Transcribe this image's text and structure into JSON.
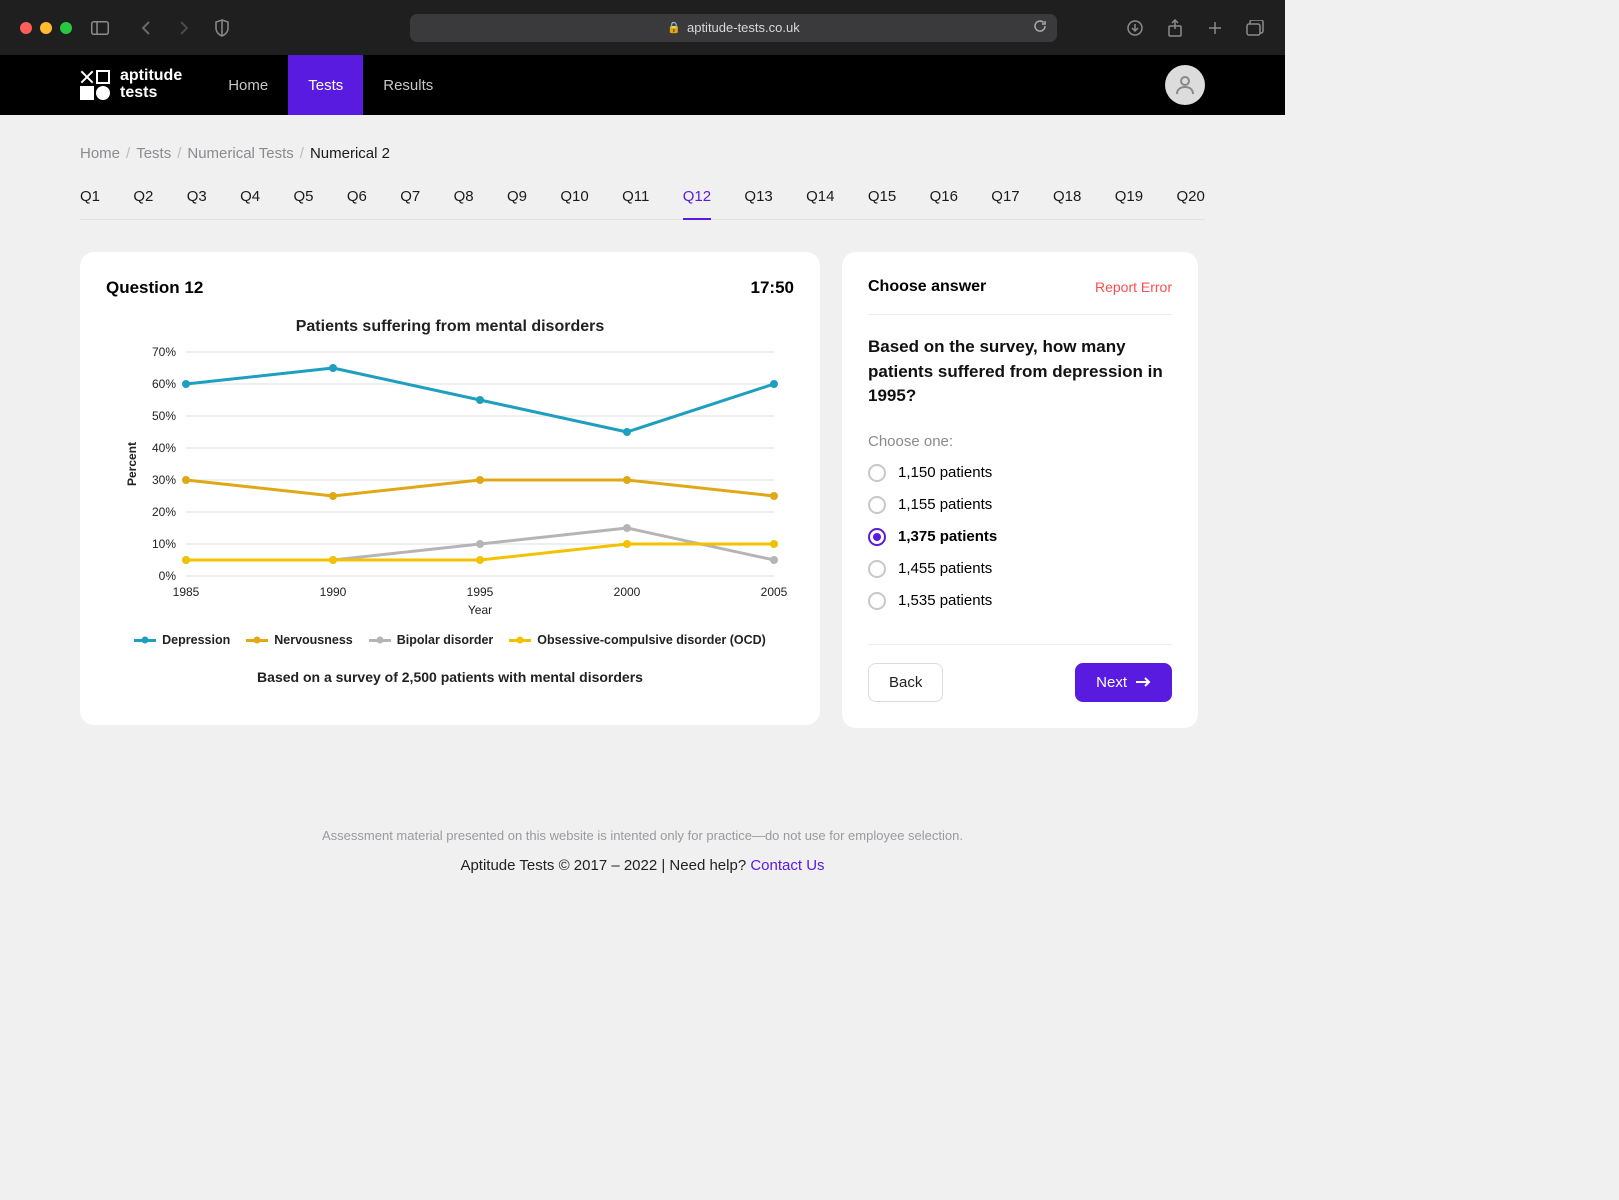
{
  "browser": {
    "url": "aptitude-tests.co.uk",
    "traffic_light_colors": [
      "#ff5f57",
      "#febc2e",
      "#28c840"
    ]
  },
  "header": {
    "brand_line1": "aptitude",
    "brand_line2": "tests",
    "nav": [
      {
        "label": "Home",
        "active": false
      },
      {
        "label": "Tests",
        "active": true
      },
      {
        "label": "Results",
        "active": false
      }
    ]
  },
  "breadcrumb": {
    "items": [
      "Home",
      "Tests",
      "Numerical Tests"
    ],
    "current": "Numerical 2"
  },
  "question_tabs": {
    "items": [
      "Q1",
      "Q2",
      "Q3",
      "Q4",
      "Q5",
      "Q6",
      "Q7",
      "Q8",
      "Q9",
      "Q10",
      "Q11",
      "Q12",
      "Q13",
      "Q14",
      "Q15",
      "Q16",
      "Q17",
      "Q18",
      "Q19",
      "Q20"
    ],
    "active_index": 11
  },
  "question": {
    "heading": "Question 12",
    "timer": "17:50",
    "chart": {
      "type": "line",
      "title": "Patients suffering from mental disorders",
      "subtitle": "Based on a survey of 2,500 patients with mental disorders",
      "x_label": "Year",
      "y_label": "Percent",
      "x_categories": [
        "1985",
        "1990",
        "1995",
        "2000",
        "2005"
      ],
      "y_ticks": [
        "0%",
        "10%",
        "20%",
        "30%",
        "40%",
        "50%",
        "60%",
        "70%"
      ],
      "ylim": [
        0,
        70
      ],
      "ytick_step": 10,
      "grid_color": "#dfdfe2",
      "background_color": "#ffffff",
      "title_fontsize": 16,
      "label_fontsize": 12,
      "line_width": 3,
      "marker_size": 4,
      "series": [
        {
          "name": "Depression",
          "color": "#1f9fbf",
          "values": [
            60,
            65,
            55,
            45,
            60
          ]
        },
        {
          "name": "Nervousness",
          "color": "#e0a817",
          "values": [
            30,
            25,
            30,
            30,
            25
          ]
        },
        {
          "name": "Bipolar disorder",
          "color": "#b5b5b8",
          "values": [
            5,
            5,
            10,
            15,
            5
          ]
        },
        {
          "name": "Obsessive-compulsive disorder (OCD)",
          "color": "#f2c200",
          "values": [
            5,
            5,
            5,
            10,
            10
          ]
        }
      ]
    }
  },
  "answer": {
    "panel_title": "Choose answer",
    "report_error_label": "Report Error",
    "question_text": "Based on the survey, how many patients suffered from depression in 1995?",
    "choose_one_label": "Choose one:",
    "options": [
      {
        "label": "1,150 patients",
        "selected": false
      },
      {
        "label": "1,155 patients",
        "selected": false
      },
      {
        "label": "1,375 patients",
        "selected": true
      },
      {
        "label": "1,455 patients",
        "selected": false
      },
      {
        "label": "1,535 patients",
        "selected": false
      }
    ],
    "back_label": "Back",
    "next_label": "Next"
  },
  "footer": {
    "disclaimer": "Assessment material presented on this website is intented only for practice—do not use for employee selection.",
    "copyright": "Aptitude Tests © 2017 – 2022 | Need help? ",
    "contact_label": "Contact Us"
  },
  "colors": {
    "accent": "#5a1be0",
    "error": "#ff4d4f"
  }
}
